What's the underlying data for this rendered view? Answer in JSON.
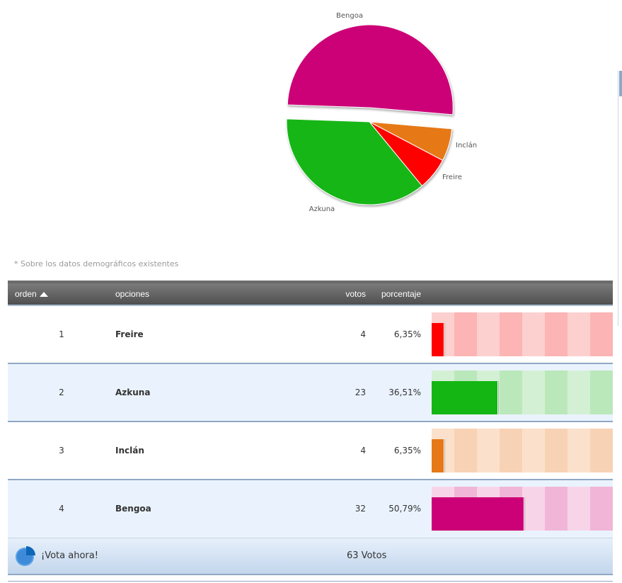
{
  "chart_data": {
    "type": "pie",
    "slices": [
      {
        "label": "Bengoa",
        "value": 50.79,
        "color": "#cc0077"
      },
      {
        "label": "Inclán",
        "value": 6.35,
        "color": "#e67817"
      },
      {
        "label": "Freire",
        "value": 6.35,
        "color": "#ff0000"
      },
      {
        "label": "Azkuna",
        "value": 36.51,
        "color": "#13b613"
      }
    ],
    "exploded": "Bengoa"
  },
  "note": "* Sobre los datos demográficos existentes",
  "table": {
    "headers": {
      "orden": "orden",
      "opciones": "opciones",
      "votos": "votos",
      "porcentaje": "porcentaje"
    },
    "rows": [
      {
        "orden": "1",
        "name": "Freire",
        "votes": "4",
        "percent": "6,35%",
        "fraction": 0.0635,
        "color": "#ff0000",
        "light": "#fdd0d0",
        "dark": "#fdb4b4"
      },
      {
        "orden": "2",
        "name": "Azkuna",
        "votes": "23",
        "percent": "36,51%",
        "fraction": 0.3651,
        "color": "#13b613",
        "light": "#d4f0d4",
        "dark": "#bae8ba"
      },
      {
        "orden": "3",
        "name": "Inclán",
        "votes": "4",
        "percent": "6,35%",
        "fraction": 0.0635,
        "color": "#e67817",
        "light": "#fbe1cc",
        "dark": "#f8d2b5"
      },
      {
        "orden": "4",
        "name": "Bengoa",
        "votes": "32",
        "percent": "50,79%",
        "fraction": 0.5079,
        "color": "#cc0077",
        "light": "#f8d4e8",
        "dark": "#f1b6d7"
      }
    ]
  },
  "footer": {
    "vote_label": "¡Vota ahora!",
    "total": "63 Votos"
  },
  "icons": {
    "footer": "pie-chart-icon",
    "sort": "sort-ascending-icon"
  }
}
